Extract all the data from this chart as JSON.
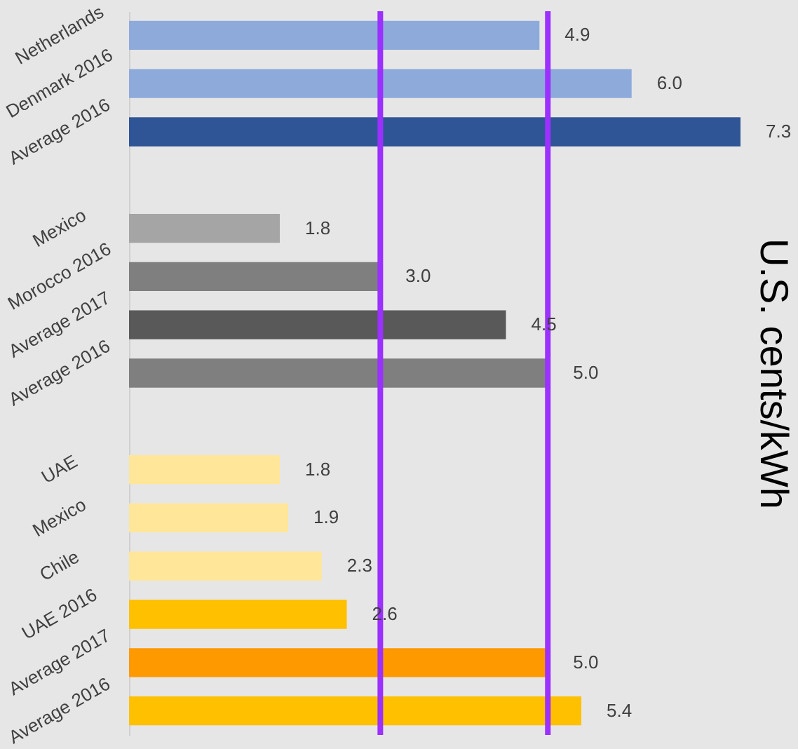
{
  "chart_data": {
    "type": "bar",
    "orientation": "horizontal",
    "ylabel": "U.S. cents/kWh",
    "categories": [
      "Netherlands",
      "Denmark 2016",
      "Average 2016",
      null,
      "Mexico",
      "Morocco 2016",
      "Average 2017",
      "Average 2016",
      null,
      "UAE",
      "Mexico",
      "Chile",
      "UAE 2016",
      "Average 2017",
      "Average 2016"
    ],
    "values": [
      4.9,
      6.0,
      7.3,
      null,
      1.8,
      3.0,
      4.5,
      5.0,
      null,
      1.8,
      1.9,
      2.3,
      2.6,
      5.0,
      5.4
    ],
    "value_labels": [
      "4.9",
      "6.0",
      "7.3",
      null,
      "1.8",
      "3.0",
      "4.5",
      "5.0",
      null,
      "1.8",
      "1.9",
      "2.3",
      "2.6",
      "5.0",
      "5.4"
    ],
    "colors": [
      "#8eaadb",
      "#8eaadb",
      "#2f5597",
      null,
      "#a5a5a5",
      "#7f7f7f",
      "#595959",
      "#7f7f7f",
      null,
      "#ffe699",
      "#ffe699",
      "#ffe699",
      "#ffc000",
      "#ff9900",
      "#ffc000"
    ],
    "ref_lines": [
      {
        "axis": "x",
        "value": 3.0,
        "color": "#9b30ff"
      },
      {
        "axis": "x",
        "value": 5.0,
        "color": "#9b30ff"
      }
    ]
  }
}
